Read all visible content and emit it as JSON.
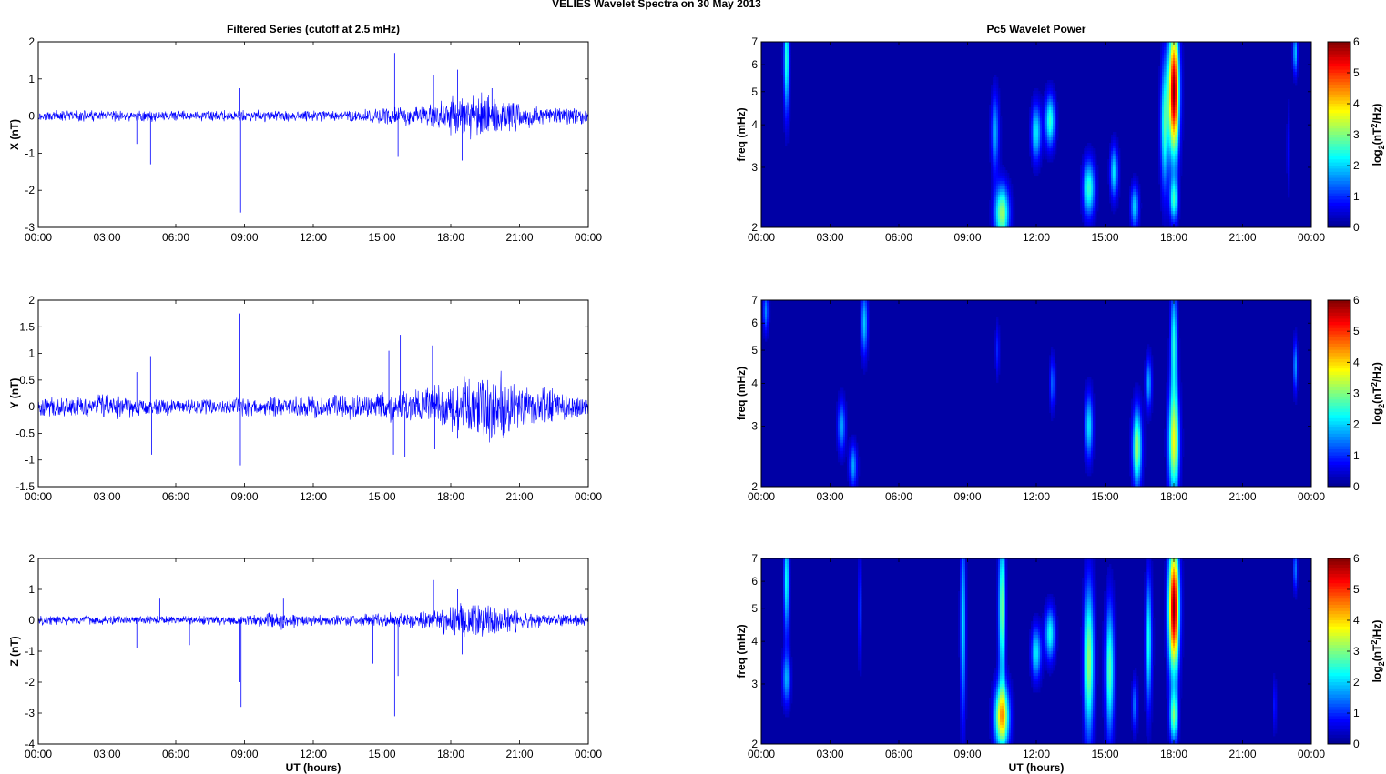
{
  "figure": {
    "suptitle": "VELIES Wavelet Spectra on 30 May      2013"
  },
  "chart_data": [
    {
      "type": "line",
      "panel": "filtered-x",
      "title": "Filtered Series (cutoff at 2.5 mHz)",
      "ylabel": "X (nT)",
      "xlabel": "",
      "x_ticks": [
        "00:00",
        "03:00",
        "06:00",
        "09:00",
        "12:00",
        "15:00",
        "18:00",
        "21:00",
        "00:00"
      ],
      "xlim": [
        0,
        24
      ],
      "ylim": [
        -3,
        2
      ],
      "y_ticks": [
        "2",
        "1",
        "0",
        "-1",
        "-2",
        "-3"
      ],
      "y_tick_values": [
        2,
        1,
        0,
        -1,
        -2,
        -3
      ],
      "line_color": "#0000ff",
      "noise_level": 0.12,
      "envelope": [
        [
          0,
          0.12
        ],
        [
          9,
          0.12
        ],
        [
          13,
          0.14
        ],
        [
          15,
          0.18
        ],
        [
          17,
          0.25
        ],
        [
          18.3,
          0.45
        ],
        [
          19.5,
          0.5
        ],
        [
          20.5,
          0.35
        ],
        [
          22,
          0.2
        ],
        [
          24,
          0.18
        ]
      ],
      "spikes": [
        {
          "t": 4.3,
          "v": -0.75
        },
        {
          "t": 4.9,
          "v": -1.3
        },
        {
          "t": 8.8,
          "v": 0.75
        },
        {
          "t": 8.83,
          "v": -2.6
        },
        {
          "t": 15.0,
          "v": -1.4
        },
        {
          "t": 15.55,
          "v": 1.7
        },
        {
          "t": 15.7,
          "v": -1.1
        },
        {
          "t": 17.25,
          "v": 1.1
        },
        {
          "t": 18.3,
          "v": 1.25
        },
        {
          "t": 18.5,
          "v": -1.2
        },
        {
          "t": 19.8,
          "v": 0.75
        }
      ]
    },
    {
      "type": "line",
      "panel": "filtered-y",
      "title": "",
      "ylabel": "Y (nT)",
      "xlabel": "",
      "x_ticks": [
        "00:00",
        "03:00",
        "06:00",
        "09:00",
        "12:00",
        "15:00",
        "18:00",
        "21:00",
        "00:00"
      ],
      "xlim": [
        0,
        24
      ],
      "ylim": [
        -1.5,
        2
      ],
      "y_ticks": [
        "2",
        "1.5",
        "1",
        "0.5",
        "0",
        "-0.5",
        "-1",
        "-1.5"
      ],
      "y_tick_values": [
        2,
        1.5,
        1,
        0.5,
        0,
        -0.5,
        -1,
        -1.5
      ],
      "line_color": "#0000ff",
      "noise_level": 0.12,
      "envelope": [
        [
          0,
          0.15
        ],
        [
          3,
          0.18
        ],
        [
          6,
          0.12
        ],
        [
          9,
          0.14
        ],
        [
          13,
          0.18
        ],
        [
          15,
          0.22
        ],
        [
          17,
          0.3
        ],
        [
          18.5,
          0.45
        ],
        [
          20,
          0.55
        ],
        [
          21,
          0.35
        ],
        [
          24,
          0.18
        ]
      ],
      "spikes": [
        {
          "t": 4.3,
          "v": 0.65
        },
        {
          "t": 4.9,
          "v": 0.95
        },
        {
          "t": 4.95,
          "v": -0.9
        },
        {
          "t": 8.8,
          "v": 1.75
        },
        {
          "t": 8.82,
          "v": -1.1
        },
        {
          "t": 15.3,
          "v": 1.05
        },
        {
          "t": 15.5,
          "v": -0.9
        },
        {
          "t": 15.8,
          "v": 1.35
        },
        {
          "t": 16.0,
          "v": -0.95
        },
        {
          "t": 17.2,
          "v": 1.15
        },
        {
          "t": 17.3,
          "v": -0.8
        },
        {
          "t": 18.3,
          "v": -0.6
        }
      ]
    },
    {
      "type": "line",
      "panel": "filtered-z",
      "title": "",
      "ylabel": "Z (nT)",
      "xlabel": "UT (hours)",
      "x_ticks": [
        "00:00",
        "03:00",
        "06:00",
        "09:00",
        "12:00",
        "15:00",
        "18:00",
        "21:00",
        "00:00"
      ],
      "xlim": [
        0,
        24
      ],
      "ylim": [
        -4,
        2
      ],
      "y_ticks": [
        "2",
        "1",
        "0",
        "-1",
        "-2",
        "-3",
        "-4"
      ],
      "y_tick_values": [
        2,
        1,
        0,
        -1,
        -2,
        -3,
        -4
      ],
      "line_color": "#0000ff",
      "noise_level": 0.12,
      "envelope": [
        [
          0,
          0.12
        ],
        [
          9,
          0.12
        ],
        [
          10.5,
          0.25
        ],
        [
          11.5,
          0.15
        ],
        [
          13,
          0.14
        ],
        [
          15,
          0.18
        ],
        [
          17,
          0.25
        ],
        [
          18.3,
          0.45
        ],
        [
          19.5,
          0.5
        ],
        [
          20.5,
          0.35
        ],
        [
          22,
          0.2
        ],
        [
          24,
          0.15
        ]
      ],
      "spikes": [
        {
          "t": 4.3,
          "v": -0.9
        },
        {
          "t": 5.3,
          "v": 0.7
        },
        {
          "t": 6.6,
          "v": -0.8
        },
        {
          "t": 8.85,
          "v": -2.8
        },
        {
          "t": 8.8,
          "v": -2.0
        },
        {
          "t": 10.7,
          "v": 0.7
        },
        {
          "t": 14.6,
          "v": -1.4
        },
        {
          "t": 15.55,
          "v": -3.1
        },
        {
          "t": 15.7,
          "v": -1.8
        },
        {
          "t": 17.25,
          "v": 1.3
        },
        {
          "t": 18.3,
          "v": 1.0
        },
        {
          "t": 18.5,
          "v": -1.1
        }
      ]
    },
    {
      "type": "heatmap",
      "panel": "wavelet-x",
      "title": "Pc5 Wavelet Power",
      "ylabel": "freq (mHz)",
      "xlabel": "",
      "x_ticks": [
        "00:00",
        "03:00",
        "06:00",
        "09:00",
        "12:00",
        "15:00",
        "18:00",
        "21:00",
        "00:00"
      ],
      "xlim": [
        0,
        24
      ],
      "ylim": [
        2,
        7
      ],
      "yscale": "log",
      "y_ticks": [
        "7",
        "6",
        "5",
        "4",
        "3",
        "2"
      ],
      "y_tick_values": [
        7,
        6,
        5,
        4,
        3,
        2
      ],
      "colorbar": {
        "label": "log2(nT2/Hz)",
        "ticks": [
          "6",
          "5",
          "4",
          "3",
          "2",
          "1",
          "0"
        ],
        "tick_values": [
          6,
          5,
          4,
          3,
          2,
          1,
          0
        ],
        "range": [
          0,
          6
        ]
      },
      "colormap": [
        "#00008f",
        "#0000ff",
        "#0080ff",
        "#00ffff",
        "#80ff80",
        "#ffff00",
        "#ff8000",
        "#ff0000",
        "#800000"
      ],
      "features": [
        {
          "t": 1.1,
          "f": 6.2,
          "dt": 0.08,
          "df": 0.25,
          "p": 2.4
        },
        {
          "t": 10.5,
          "f": 2.2,
          "dt": 0.22,
          "df": 0.13,
          "p": 3.0
        },
        {
          "t": 10.2,
          "f": 3.8,
          "dt": 0.12,
          "df": 0.18,
          "p": 1.6
        },
        {
          "t": 12.0,
          "f": 3.8,
          "dt": 0.15,
          "df": 0.13,
          "p": 2.0
        },
        {
          "t": 12.6,
          "f": 4.1,
          "dt": 0.15,
          "df": 0.12,
          "p": 2.4
        },
        {
          "t": 14.3,
          "f": 2.6,
          "dt": 0.18,
          "df": 0.13,
          "p": 2.4
        },
        {
          "t": 15.4,
          "f": 2.9,
          "dt": 0.12,
          "df": 0.12,
          "p": 2.0
        },
        {
          "t": 16.3,
          "f": 2.3,
          "dt": 0.12,
          "df": 0.1,
          "p": 1.9
        },
        {
          "t": 17.6,
          "f": 4.0,
          "dt": 0.12,
          "df": 0.3,
          "p": 2.4
        },
        {
          "t": 18.0,
          "f": 5.0,
          "dt": 0.16,
          "df": 0.3,
          "p": 5.8
        },
        {
          "t": 18.0,
          "f": 2.4,
          "dt": 0.12,
          "df": 0.1,
          "p": 2.2
        },
        {
          "t": 23.3,
          "f": 6.5,
          "dt": 0.07,
          "df": 0.1,
          "p": 1.8
        },
        {
          "t": 23.0,
          "f": 3.4,
          "dt": 0.05,
          "df": 0.2,
          "p": 0.6
        }
      ]
    },
    {
      "type": "heatmap",
      "panel": "wavelet-y",
      "title": "",
      "ylabel": "freq (mHz)",
      "xlabel": "",
      "x_ticks": [
        "00:00",
        "03:00",
        "06:00",
        "09:00",
        "12:00",
        "15:00",
        "18:00",
        "21:00",
        "00:00"
      ],
      "xlim": [
        0,
        24
      ],
      "ylim": [
        2,
        7
      ],
      "yscale": "log",
      "y_ticks": [
        "7",
        "6",
        "5",
        "4",
        "3",
        "2"
      ],
      "y_tick_values": [
        7,
        6,
        5,
        4,
        3,
        2
      ],
      "colorbar": {
        "label": "log2(nT2/Hz)",
        "ticks": [
          "6",
          "5",
          "4",
          "3",
          "2",
          "1",
          "0"
        ],
        "tick_values": [
          6,
          5,
          4,
          3,
          2,
          1,
          0
        ],
        "range": [
          0,
          6
        ]
      },
      "colormap": [
        "#00008f",
        "#0000ff",
        "#0080ff",
        "#00ffff",
        "#80ff80",
        "#ffff00",
        "#ff8000",
        "#ff0000",
        "#800000"
      ],
      "features": [
        {
          "t": 0.2,
          "f": 6.5,
          "dt": 0.08,
          "df": 0.1,
          "p": 1.4
        },
        {
          "t": 4.5,
          "f": 6.0,
          "dt": 0.1,
          "df": 0.15,
          "p": 1.8
        },
        {
          "t": 3.5,
          "f": 3.0,
          "dt": 0.12,
          "df": 0.12,
          "p": 1.6
        },
        {
          "t": 4.0,
          "f": 2.3,
          "dt": 0.12,
          "df": 0.1,
          "p": 1.6
        },
        {
          "t": 10.3,
          "f": 5.0,
          "dt": 0.06,
          "df": 0.12,
          "p": 0.8
        },
        {
          "t": 12.7,
          "f": 4.0,
          "dt": 0.08,
          "df": 0.12,
          "p": 1.2
        },
        {
          "t": 14.3,
          "f": 3.0,
          "dt": 0.12,
          "df": 0.15,
          "p": 2.0
        },
        {
          "t": 16.4,
          "f": 2.6,
          "dt": 0.14,
          "df": 0.18,
          "p": 3.0
        },
        {
          "t": 16.9,
          "f": 4.0,
          "dt": 0.1,
          "df": 0.12,
          "p": 1.6
        },
        {
          "t": 18.0,
          "f": 2.7,
          "dt": 0.16,
          "df": 0.25,
          "p": 3.5
        },
        {
          "t": 18.0,
          "f": 5.3,
          "dt": 0.1,
          "df": 0.25,
          "p": 2.2
        },
        {
          "t": 23.3,
          "f": 4.5,
          "dt": 0.06,
          "df": 0.12,
          "p": 1.6
        }
      ]
    },
    {
      "type": "heatmap",
      "panel": "wavelet-z",
      "title": "",
      "ylabel": "freq (mHz)",
      "xlabel": "UT (hours)",
      "x_ticks": [
        "00:00",
        "03:00",
        "06:00",
        "09:00",
        "12:00",
        "15:00",
        "18:00",
        "21:00",
        "00:00"
      ],
      "xlim": [
        0,
        24
      ],
      "ylim": [
        2,
        7
      ],
      "yscale": "log",
      "y_ticks": [
        "7",
        "6",
        "5",
        "4",
        "3",
        "2"
      ],
      "y_tick_values": [
        7,
        6,
        5,
        4,
        3,
        2
      ],
      "colorbar": {
        "label": "log2(nT2/Hz)",
        "ticks": [
          "6",
          "5",
          "4",
          "3",
          "2",
          "1",
          "0"
        ],
        "tick_values": [
          6,
          5,
          4,
          3,
          2,
          1,
          0
        ],
        "range": [
          0,
          6
        ]
      },
      "colormap": [
        "#00008f",
        "#0000ff",
        "#0080ff",
        "#00ffff",
        "#80ff80",
        "#ffff00",
        "#ff8000",
        "#ff0000",
        "#800000"
      ],
      "features": [
        {
          "t": 1.1,
          "f": 6.0,
          "dt": 0.08,
          "df": 0.25,
          "p": 2.2
        },
        {
          "t": 1.1,
          "f": 3.1,
          "dt": 0.12,
          "df": 0.12,
          "p": 1.6
        },
        {
          "t": 4.3,
          "f": 5.0,
          "dt": 0.05,
          "df": 0.25,
          "p": 1.0
        },
        {
          "t": 8.8,
          "f": 4.5,
          "dt": 0.08,
          "df": 0.45,
          "p": 2.0
        },
        {
          "t": 10.5,
          "f": 2.4,
          "dt": 0.22,
          "df": 0.15,
          "p": 4.0
        },
        {
          "t": 10.5,
          "f": 5.0,
          "dt": 0.1,
          "df": 0.35,
          "p": 2.8
        },
        {
          "t": 12.0,
          "f": 3.7,
          "dt": 0.15,
          "df": 0.12,
          "p": 2.0
        },
        {
          "t": 12.6,
          "f": 4.2,
          "dt": 0.15,
          "df": 0.12,
          "p": 2.2
        },
        {
          "t": 14.3,
          "f": 3.5,
          "dt": 0.15,
          "df": 0.35,
          "p": 3.0
        },
        {
          "t": 15.2,
          "f": 3.3,
          "dt": 0.14,
          "df": 0.3,
          "p": 2.6
        },
        {
          "t": 16.3,
          "f": 2.6,
          "dt": 0.08,
          "df": 0.12,
          "p": 1.4
        },
        {
          "t": 16.9,
          "f": 4.0,
          "dt": 0.1,
          "df": 0.3,
          "p": 2.2
        },
        {
          "t": 18.0,
          "f": 5.0,
          "dt": 0.16,
          "df": 0.3,
          "p": 5.8
        },
        {
          "t": 18.0,
          "f": 2.4,
          "dt": 0.12,
          "df": 0.12,
          "p": 2.6
        },
        {
          "t": 23.3,
          "f": 6.5,
          "dt": 0.06,
          "df": 0.1,
          "p": 1.4
        },
        {
          "t": 22.4,
          "f": 2.6,
          "dt": 0.05,
          "df": 0.12,
          "p": 0.8
        }
      ]
    }
  ]
}
